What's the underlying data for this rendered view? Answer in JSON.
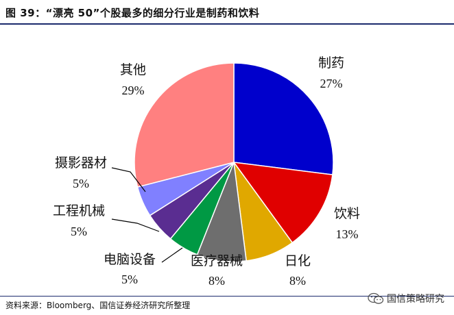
{
  "figure": {
    "title": "图 39：“漂亮 50”个股最多的细分行业是制药和饮料",
    "source": "资料来源：Bloomberg、国信证券经济研究所整理",
    "watermark": "国信策略研究"
  },
  "chart_data": {
    "type": "pie",
    "start_angle_deg": 0,
    "direction": "clockwise",
    "slices": [
      {
        "label": "制药",
        "value": 27,
        "pct_text": "27%",
        "color": "#0000cc"
      },
      {
        "label": "饮料",
        "value": 13,
        "pct_text": "13%",
        "color": "#e00000"
      },
      {
        "label": "日化",
        "value": 8,
        "pct_text": "8%",
        "color": "#e0a800"
      },
      {
        "label": "医疗器械",
        "value": 8,
        "pct_text": "8%",
        "color": "#6e6e6e"
      },
      {
        "label": "电脑设备",
        "value": 5,
        "pct_text": "5%",
        "color": "#009944"
      },
      {
        "label": "工程机械",
        "value": 5,
        "pct_text": "5%",
        "color": "#5a2d91"
      },
      {
        "label": "摄影器材",
        "value": 5,
        "pct_text": "5%",
        "color": "#8080ff"
      },
      {
        "label": "其他",
        "value": 29,
        "pct_text": "29%",
        "color": "#ff8080"
      }
    ]
  }
}
